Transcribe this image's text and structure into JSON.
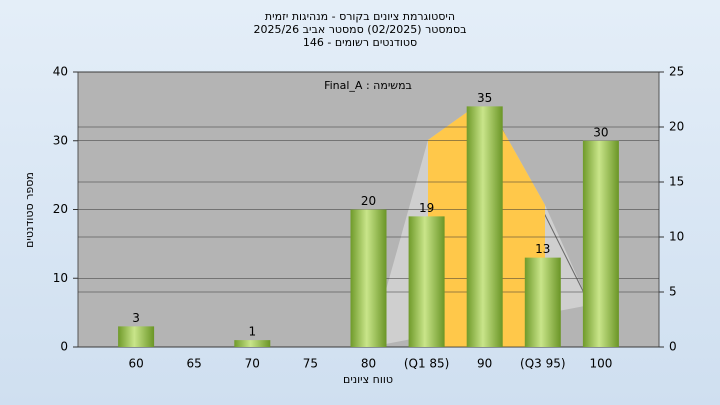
{
  "chart_data": {
    "type": "bar",
    "title": [
      "היסטוגרמת ציונים בקורס - מנהיגות יזמית",
      "בסמסטר (02/2025)  סמסטר אביב 2025/26",
      "סטודנטים רשומים - 146"
    ],
    "annotation": "Final_A : במשימה",
    "x_label": "טווח ציונים",
    "y_label": "מספר סטודנטים",
    "categories": [
      "60",
      "65",
      "70",
      "75",
      "80",
      "(Q1 85)",
      "90",
      "(Q3 95)",
      "100"
    ],
    "values": [
      3,
      null,
      1,
      null,
      20,
      19,
      35,
      13,
      30
    ],
    "color": "#8fbf3f",
    "ylim": [
      0,
      40
    ],
    "yticks": [
      0,
      10,
      20,
      30,
      40
    ],
    "y2lim": [
      0,
      25
    ],
    "y2ticks": [
      0,
      5,
      10,
      15,
      20,
      25
    ],
    "grid": true
  }
}
